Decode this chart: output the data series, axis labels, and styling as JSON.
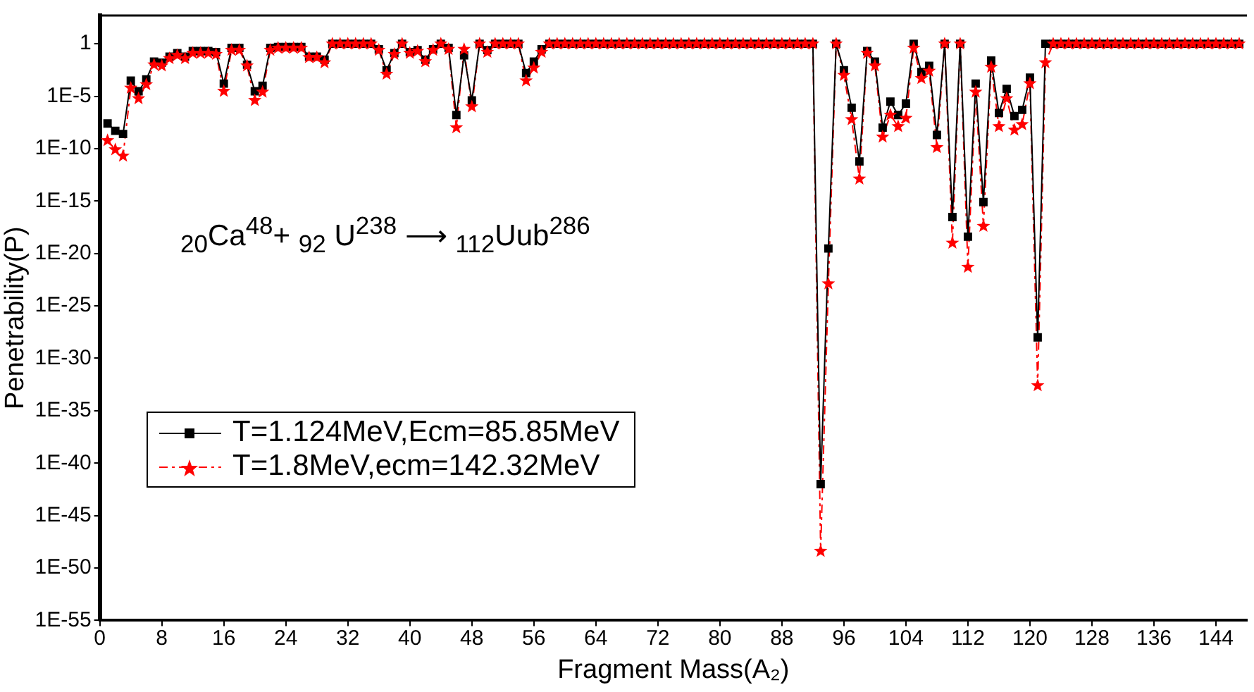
{
  "chart_data": {
    "type": "line",
    "xlabel": "Fragment Mass(A₂)",
    "ylabel": "Penetrability(P)",
    "log": "y",
    "legend": "left",
    "annotations": [
      "$_{20}$Ca$^{48}$+ $_{92}$ U$^{238}$ ⟶ $_{112}$Uub$^{286}$"
    ],
    "xlim": [
      0,
      148
    ],
    "xticks": [
      0,
      8,
      16,
      24,
      32,
      40,
      48,
      56,
      64,
      72,
      80,
      88,
      96,
      104,
      112,
      120,
      128,
      136,
      144
    ],
    "ylim": [
      1e-55,
      500
    ],
    "yticks": [
      1,
      {
        "value": 1e-05,
        "label": "1E-5"
      },
      {
        "value": 1e-10,
        "label": "1E-10"
      },
      {
        "value": 1e-15,
        "label": "1E-15"
      },
      {
        "value": 1e-20,
        "label": "1E-20"
      },
      {
        "value": 1e-25,
        "label": "1E-25"
      },
      {
        "value": 1e-30,
        "label": "1E-30"
      },
      {
        "value": 1e-35,
        "label": "1E-35"
      },
      {
        "value": 1e-40,
        "label": "1E-40"
      },
      {
        "value": 1e-45,
        "label": "1E-45"
      },
      {
        "value": 1e-50,
        "label": "1E-50"
      },
      {
        "value": 1e-55,
        "label": "1E-55"
      }
    ],
    "x": [
      1,
      2,
      3,
      4,
      5,
      6,
      7,
      8,
      9,
      10,
      11,
      12,
      13,
      14,
      15,
      16,
      17,
      18,
      19,
      20,
      21,
      22,
      23,
      24,
      25,
      26,
      27,
      28,
      29,
      30,
      31,
      32,
      33,
      34,
      35,
      36,
      37,
      38,
      39,
      40,
      41,
      42,
      43,
      44,
      45,
      46,
      47,
      48,
      49,
      50,
      51,
      52,
      53,
      54,
      55,
      56,
      57,
      58,
      59,
      60,
      61,
      62,
      63,
      64,
      65,
      66,
      67,
      68,
      69,
      70,
      71,
      72,
      73,
      74,
      75,
      76,
      77,
      78,
      79,
      80,
      81,
      82,
      83,
      84,
      85,
      86,
      87,
      88,
      89,
      90,
      91,
      92,
      93,
      94,
      95,
      96,
      97,
      98,
      99,
      100,
      101,
      102,
      103,
      104,
      105,
      106,
      107,
      108,
      109,
      110,
      111,
      112,
      113,
      114,
      115,
      116,
      117,
      118,
      119,
      120,
      121,
      122,
      123,
      124,
      125,
      126,
      127,
      128,
      129,
      130,
      131,
      132,
      133,
      134,
      135,
      136,
      137,
      138,
      139,
      140,
      141,
      142,
      143,
      144,
      145,
      146,
      147
    ],
    "series": [
      {
        "name": "T=1.124MeV,Ecm=85.85MeV",
        "color": "#000000",
        "marker": "square",
        "line_style": "solid",
        "values": [
          2.5e-08,
          5e-09,
          2.5e-09,
          0.0003,
          3e-05,
          0.0004,
          0.02,
          0.016,
          0.06,
          0.13,
          0.06,
          0.2,
          0.2,
          0.2,
          0.16,
          0.00016,
          0.4,
          0.4,
          0.01,
          3e-05,
          0.0001,
          0.4,
          0.5,
          0.5,
          0.5,
          0.5,
          0.06,
          0.06,
          0.03,
          1,
          1,
          1,
          1,
          1,
          1,
          0.3,
          0.003,
          0.13,
          1,
          0.16,
          0.25,
          0.03,
          0.3,
          1,
          0.4,
          1.6e-07,
          0.08,
          4e-06,
          1,
          0.25,
          1,
          1,
          1,
          1,
          0.0016,
          0.02,
          0.3,
          1,
          1,
          1,
          1,
          1,
          1,
          1,
          1,
          1,
          1,
          1,
          1,
          1,
          1,
          1,
          1,
          1,
          1,
          1,
          1,
          1,
          1,
          1,
          1,
          1,
          1,
          1,
          1,
          1,
          1,
          1,
          1,
          1,
          1,
          1,
          1e-42,
          3e-20,
          1,
          0.003,
          8e-07,
          6e-12,
          0.2,
          0.02,
          1e-08,
          3e-06,
          1.6e-07,
          2e-06,
          1,
          0.002,
          0.008,
          2e-09,
          1,
          3e-17,
          1,
          4e-19,
          0.00016,
          8e-16,
          0.025,
          2.5e-07,
          5e-05,
          1.3e-07,
          5e-07,
          0.0006,
          1e-28,
          1,
          1,
          1,
          1,
          1,
          1,
          1,
          1,
          1,
          1,
          1,
          1,
          1,
          1,
          1,
          1,
          1,
          1,
          1,
          1,
          1,
          1,
          1,
          1,
          1,
          1
        ]
      },
      {
        "name": "T=1.8MeV,ecm=142.32MeV",
        "color": "#ff0000",
        "marker": "star",
        "line_style": "dashed",
        "values": [
          6e-10,
          8e-11,
          2e-11,
          6e-05,
          6e-06,
          0.00013,
          0.01,
          0.008,
          0.04,
          0.08,
          0.04,
          0.13,
          0.13,
          0.13,
          0.1,
          3e-05,
          0.25,
          0.25,
          0.008,
          4e-06,
          2.5e-05,
          0.25,
          0.4,
          0.4,
          0.4,
          0.4,
          0.05,
          0.05,
          0.016,
          1,
          1,
          1,
          1,
          1,
          1,
          0.25,
          0.0013,
          0.1,
          1,
          0.13,
          0.2,
          0.02,
          0.25,
          1,
          0.3,
          1e-08,
          0.3,
          1e-06,
          1,
          0.16,
          1,
          1,
          1,
          1,
          0.0003,
          0.005,
          0.16,
          1,
          1,
          1,
          1,
          1,
          1,
          1,
          1,
          1,
          1,
          1,
          1,
          1,
          1,
          1,
          1,
          1,
          1,
          1,
          1,
          1,
          1,
          1,
          1,
          1,
          1,
          1,
          1,
          1,
          1,
          1,
          1,
          1,
          1,
          1,
          4e-49,
          1.3e-23,
          1,
          0.001,
          6e-08,
          1.3e-13,
          0.13,
          0.008,
          1.3e-09,
          1.6e-07,
          1.3e-08,
          8e-08,
          0.4,
          0.0005,
          0.0025,
          1.3e-10,
          1,
          1e-19,
          1,
          5e-22,
          2.5e-05,
          4e-18,
          0.006,
          1.3e-08,
          6e-06,
          6e-09,
          2e-08,
          0.00016,
          2.5e-33,
          0.016,
          1,
          1,
          1,
          1,
          1,
          1,
          1,
          1,
          1,
          1,
          1,
          1,
          1,
          1,
          1,
          1,
          1,
          1,
          1,
          1,
          1,
          1,
          1,
          1,
          1
        ]
      }
    ]
  }
}
